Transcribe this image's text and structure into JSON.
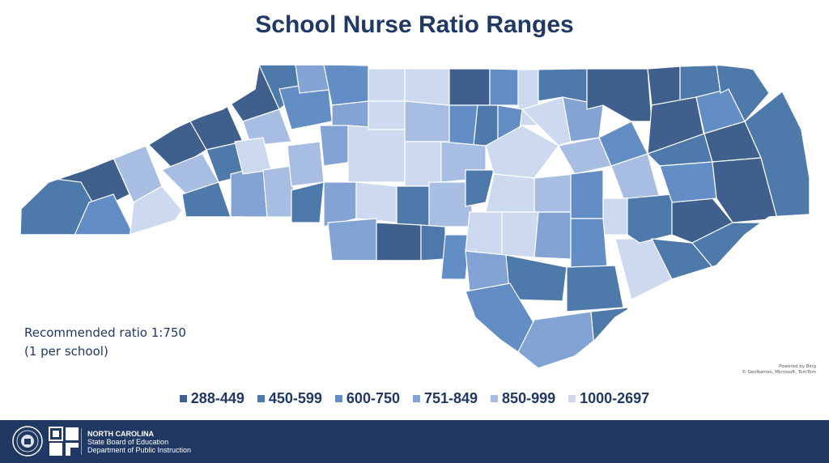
{
  "title": "School Nurse Ratio Ranges",
  "note": {
    "line1": "Recommended ratio 1:750",
    "line2": "(1 per school)"
  },
  "attribution": {
    "line1": "Powered by Bing",
    "line2": "© GeoNames, Microsoft, TomTom"
  },
  "legend": [
    {
      "label": "288-449",
      "color": "#3f5f8c"
    },
    {
      "label": "450-599",
      "color": "#4e79ab"
    },
    {
      "label": "600-750",
      "color": "#628dc5"
    },
    {
      "label": "751-849",
      "color": "#82a3d3"
    },
    {
      "label": "850-999",
      "color": "#a7bee2"
    },
    {
      "label": "1000-2697",
      "color": "#cdd9ee"
    }
  ],
  "footer": {
    "line1": "NORTH CAROLINA",
    "line2": "State Board of Education",
    "line3": "Department of Public Instruction"
  }
}
